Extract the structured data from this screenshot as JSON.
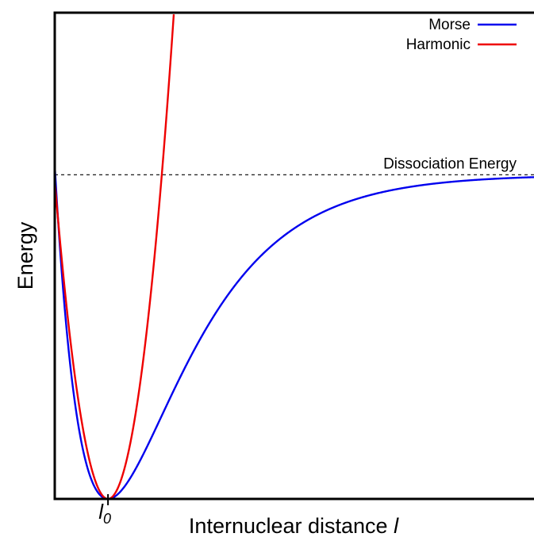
{
  "chart_data": {
    "type": "line",
    "title": "",
    "xlabel": "Internuclear distance l",
    "xlabel_text": "Internuclear distance ",
    "xlabel_var": "l",
    "ylabel": "Energy",
    "x_tick": {
      "label": "l0",
      "base": "l",
      "sub": "0",
      "value": 1.0
    },
    "xlim": [
      0.65,
      3.8
    ],
    "ylim": [
      0,
      1.5
    ],
    "grid": false,
    "legend": {
      "position": "top-right"
    },
    "dissociation": {
      "label": "Dissociation Energy",
      "value": 1.0
    },
    "series": [
      {
        "name": "Morse",
        "color": "#0000ee",
        "model": "morse",
        "De": 1.0,
        "a": 2.0,
        "r0": 1.0
      },
      {
        "name": "Harmonic",
        "color": "#ee0000",
        "model": "harmonic",
        "k": 8.0,
        "r0": 1.0
      }
    ]
  }
}
